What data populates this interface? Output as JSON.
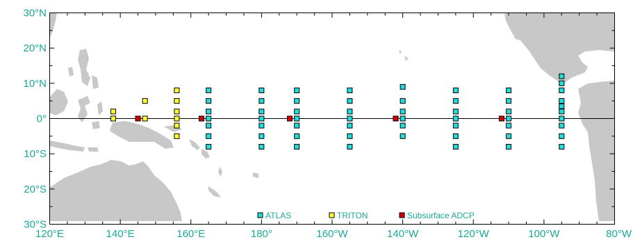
{
  "axes": {
    "x_ticks": [
      {
        "lon": 120,
        "label": "120°E"
      },
      {
        "lon": 140,
        "label": "140°E"
      },
      {
        "lon": 160,
        "label": "160°E"
      },
      {
        "lon": 180,
        "label": "180°"
      },
      {
        "lon": 200,
        "label": "160°W"
      },
      {
        "lon": 220,
        "label": "140°W"
      },
      {
        "lon": 240,
        "label": "120°W"
      },
      {
        "lon": 260,
        "label": "100°W"
      },
      {
        "lon": 280,
        "label": "80°W"
      }
    ],
    "y_ticks": [
      {
        "lat": 30,
        "label": "30°N"
      },
      {
        "lat": 20,
        "label": "20°N"
      },
      {
        "lat": 10,
        "label": "10°N"
      },
      {
        "lat": 0,
        "label": "0°"
      },
      {
        "lat": -10,
        "label": "10°S"
      },
      {
        "lat": -20,
        "label": "20°S"
      },
      {
        "lat": -30,
        "label": "30°S"
      }
    ],
    "lon_range": [
      120,
      280
    ],
    "lat_range": [
      -30,
      30
    ],
    "minor_lon_step": 5,
    "minor_lat_step": 5
  },
  "colors": {
    "atlas": "#22dcdc",
    "triton": "#ffff33",
    "adcp": "#d40000",
    "land": "#c8c8c8",
    "label": "#1aa89a"
  },
  "legend": {
    "atlas_label": "ATLAS",
    "triton_label": "TRITON",
    "adcp_label": "Subsurface ADCP"
  },
  "moorings": {
    "triton": [
      {
        "lon": 138,
        "lats": [
          2,
          0
        ]
      },
      {
        "lon": 147,
        "lats": [
          5,
          0
        ]
      },
      {
        "lon": 156,
        "lats": [
          8,
          5,
          2,
          0,
          -2,
          -5
        ]
      }
    ],
    "atlas": [
      {
        "lon": 165,
        "lats": [
          8,
          5,
          2,
          0,
          -2,
          -5,
          -8
        ]
      },
      {
        "lon": 180,
        "lats": [
          8,
          5,
          2,
          0,
          -2,
          -5,
          -8
        ]
      },
      {
        "lon": 190,
        "lats": [
          8,
          5,
          2,
          0,
          -2,
          -5,
          -8
        ]
      },
      {
        "lon": 205,
        "lats": [
          8,
          5,
          2,
          0,
          -2,
          -5,
          -8
        ]
      },
      {
        "lon": 220,
        "lats": [
          9,
          5,
          2,
          0,
          -2,
          -5
        ]
      },
      {
        "lon": 235,
        "lats": [
          8,
          5,
          2,
          0,
          -2,
          -5,
          -8
        ]
      },
      {
        "lon": 250,
        "lats": [
          8,
          5,
          2,
          0,
          -2,
          -5,
          -8
        ]
      },
      {
        "lon": 265,
        "lats": [
          12,
          10,
          8,
          5,
          3.5,
          2,
          0,
          -2,
          -5,
          -8
        ]
      }
    ],
    "adcp": [
      {
        "lon": 147,
        "lat": 0
      },
      {
        "lon": 165,
        "lat": 0
      },
      {
        "lon": 190,
        "lat": 0
      },
      {
        "lon": 220,
        "lat": 0
      },
      {
        "lon": 250,
        "lat": 0
      }
    ]
  }
}
